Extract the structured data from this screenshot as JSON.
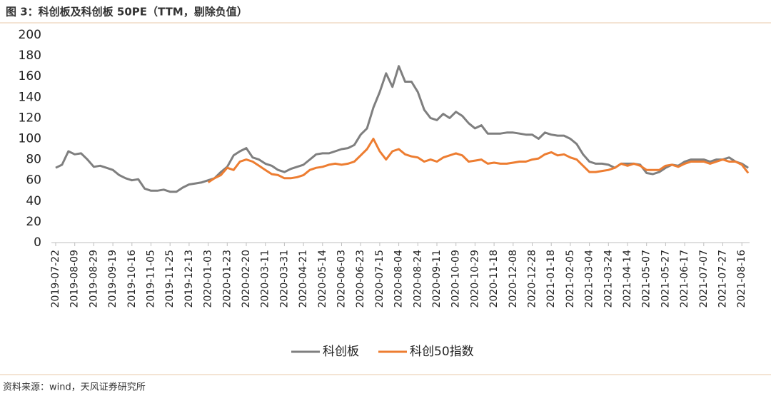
{
  "chart_data": {
    "type": "line",
    "title": "图 3：科创板及科创板 50PE（TTM，剔除负值）",
    "source": "资料来源：wind，天风证券研究所",
    "categories": [
      "2019-07-22",
      null,
      null,
      "2019-08-09",
      null,
      null,
      "2019-08-29",
      null,
      null,
      "2019-09-19",
      null,
      null,
      "2019-10-16",
      null,
      null,
      "2019-11-05",
      null,
      null,
      "2019-11-25",
      null,
      null,
      "2019-12-13",
      null,
      null,
      "2020-01-03",
      null,
      null,
      "2020-01-23",
      null,
      null,
      "2020-02-20",
      null,
      null,
      "2020-03-11",
      null,
      null,
      "2020-03-31",
      null,
      null,
      "2020-04-21",
      null,
      null,
      "2020-05-14",
      null,
      null,
      "2020-06-03",
      null,
      null,
      "2020-06-23",
      null,
      null,
      "2020-07-15",
      null,
      null,
      "2020-08-04",
      null,
      null,
      "2020-08-24",
      null,
      null,
      "2020-09-11",
      null,
      null,
      "2020-10-09",
      null,
      null,
      "2020-10-29",
      null,
      null,
      "2020-11-18",
      null,
      null,
      "2020-12-08",
      null,
      null,
      "2020-12-28",
      null,
      null,
      "2021-01-18",
      null,
      null,
      "2021-02-05",
      null,
      null,
      "2021-03-04",
      null,
      null,
      "2021-03-24",
      null,
      null,
      "2021-04-14",
      null,
      null,
      "2021-05-07",
      null,
      null,
      "2021-05-27",
      null,
      null,
      "2021-06-17",
      null,
      null,
      "2021-07-07",
      null,
      null,
      "2021-07-27",
      null,
      null,
      "2021-08-16",
      null
    ],
    "series": [
      {
        "name": "科创板",
        "color": "#7f7f7f",
        "values": [
          72,
          75,
          88,
          85,
          86,
          80,
          73,
          74,
          72,
          70,
          65,
          62,
          60,
          61,
          52,
          50,
          50,
          51,
          49,
          49,
          53,
          56,
          57,
          58,
          60,
          62,
          68,
          73,
          84,
          88,
          91,
          82,
          80,
          76,
          74,
          70,
          68,
          71,
          73,
          75,
          80,
          85,
          86,
          86,
          88,
          90,
          91,
          94,
          104,
          110,
          130,
          145,
          163,
          150,
          170,
          155,
          155,
          145,
          128,
          120,
          118,
          124,
          120,
          126,
          122,
          115,
          110,
          113,
          105,
          105,
          105,
          106,
          106,
          105,
          104,
          104,
          100,
          106,
          104,
          103,
          103,
          100,
          95,
          85,
          78,
          76,
          76,
          75,
          72,
          76,
          76,
          76,
          75,
          67,
          66,
          68,
          72,
          75,
          74,
          78,
          80,
          80,
          80,
          78,
          80,
          80,
          82,
          78,
          76,
          72
        ]
      },
      {
        "name": "科创50指数",
        "color": "#ed7d31",
        "values": [
          null,
          null,
          null,
          null,
          null,
          null,
          null,
          null,
          null,
          null,
          null,
          null,
          null,
          null,
          null,
          null,
          null,
          null,
          null,
          null,
          null,
          null,
          null,
          null,
          58,
          62,
          65,
          72,
          70,
          78,
          80,
          78,
          74,
          70,
          66,
          65,
          62,
          62,
          63,
          65,
          70,
          72,
          73,
          75,
          76,
          75,
          76,
          78,
          84,
          90,
          100,
          88,
          80,
          88,
          90,
          85,
          83,
          82,
          78,
          80,
          78,
          82,
          84,
          86,
          84,
          78,
          79,
          80,
          76,
          77,
          76,
          76,
          77,
          78,
          78,
          80,
          81,
          85,
          87,
          84,
          85,
          82,
          80,
          74,
          68,
          68,
          69,
          70,
          72,
          76,
          74,
          76,
          74,
          70,
          70,
          70,
          74,
          75,
          73,
          76,
          78,
          78,
          78,
          76,
          78,
          80,
          78,
          78,
          75,
          67
        ]
      }
    ],
    "ylim": [
      0,
      200
    ],
    "yticks": [
      0,
      20,
      40,
      60,
      80,
      100,
      120,
      140,
      160,
      180,
      200
    ]
  }
}
